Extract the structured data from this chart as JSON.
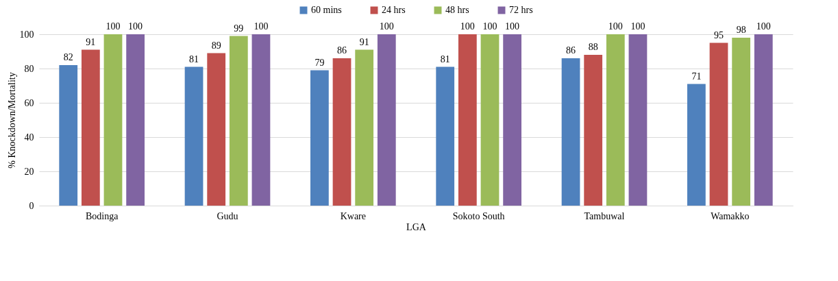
{
  "chart_data": {
    "type": "bar",
    "xlabel": "LGA",
    "ylabel": "% Knockdown/Mortality",
    "categories": [
      "Bodinga",
      "Gudu",
      "Kware",
      "Sokoto South",
      "Tambuwal",
      "Wamakko"
    ],
    "series": [
      {
        "name": "60 mins",
        "color": "#4f81bd",
        "values": [
          82,
          81,
          79,
          81,
          86,
          71
        ]
      },
      {
        "name": "24 hrs",
        "color": "#c0504d",
        "values": [
          91,
          89,
          86,
          100,
          88,
          95
        ]
      },
      {
        "name": "48 hrs",
        "color": "#9bbb59",
        "values": [
          100,
          99,
          91,
          100,
          100,
          98
        ]
      },
      {
        "name": "72 hrs",
        "color": "#8064a2",
        "values": [
          100,
          100,
          100,
          100,
          100,
          100
        ]
      }
    ],
    "ylim": [
      0,
      100
    ],
    "yticks": [
      0,
      20,
      40,
      60,
      80,
      100
    ],
    "grid": "y",
    "legend": "top",
    "data_labels": true
  }
}
